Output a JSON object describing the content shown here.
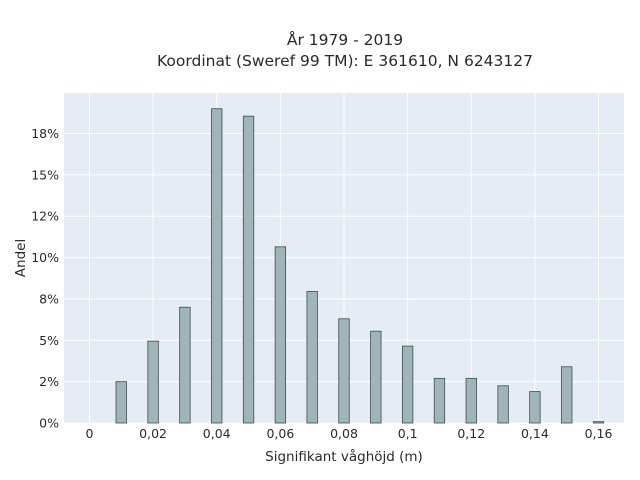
{
  "chart_data": {
    "type": "bar",
    "title_lines": [
      "År 1979 - 2019",
      "Koordinat (Sweref 99 TM): E 361610, N 6243127"
    ],
    "xlabel": "Signifikant våghöjd (m)",
    "ylabel": "Andel",
    "xlim": [
      -0.008,
      0.168
    ],
    "ylim": [
      0,
      0.1995
    ],
    "x_ticks": [
      0,
      0.02,
      0.04,
      0.06,
      0.08,
      0.1,
      0.12,
      0.14,
      0.16
    ],
    "x_tick_labels": [
      "0",
      "0,02",
      "0,04",
      "0,06",
      "0,08",
      "0,1",
      "0,12",
      "0,14",
      "0,16"
    ],
    "y_ticks": [
      0,
      0.025,
      0.05,
      0.075,
      0.1,
      0.125,
      0.15,
      0.175
    ],
    "y_tick_labels": [
      "0%",
      "2%",
      "5%",
      "8%",
      "10%",
      "12%",
      "15%",
      "18%"
    ],
    "bar_width": 0.0033,
    "x": [
      0.01,
      0.02,
      0.03,
      0.04,
      0.05,
      0.06,
      0.07,
      0.08,
      0.09,
      0.1,
      0.11,
      0.12,
      0.13,
      0.14,
      0.15,
      0.16
    ],
    "values": [
      0.025,
      0.0495,
      0.07,
      0.19,
      0.1855,
      0.1065,
      0.0795,
      0.063,
      0.0555,
      0.0465,
      0.027,
      0.027,
      0.0225,
      0.019,
      0.034,
      0.0008
    ],
    "grid": true,
    "colors": {
      "plot_bg": "#e5ecf6",
      "grid": "#ffffff",
      "bar_fill": "#9fb6b9",
      "bar_stroke": "#404a4c"
    }
  }
}
